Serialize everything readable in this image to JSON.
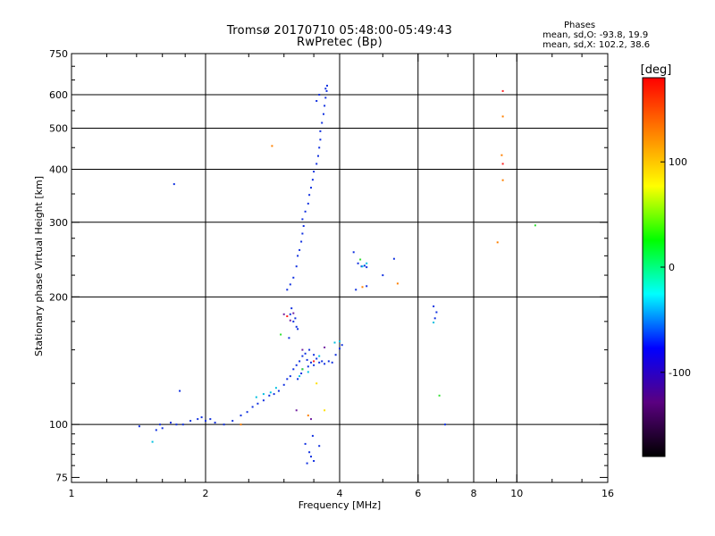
{
  "header": {
    "title_line1": "Tromsø 20170710 05:48:00-05:49:43",
    "title_line2": "RwPretec (Bp)"
  },
  "phases_box": {
    "heading": "Phases",
    "line_o": "mean, sd,O: -93.8, 19.9",
    "line_x": "mean, sd,X: 102.2, 38.6"
  },
  "chart_data": {
    "type": "scatter",
    "xlabel": "Frequency [MHz]",
    "ylabel": "Stationary phase Virtual Height [km]",
    "x_scale": "log",
    "y_scale": "log",
    "xlim": [
      1,
      16
    ],
    "ylim": [
      73,
      750
    ],
    "x_ticks": [
      1,
      2,
      4,
      6,
      8,
      10,
      16
    ],
    "x_tick_labels": [
      "1",
      "2",
      "4",
      "6",
      "8",
      "10",
      "16"
    ],
    "x_gridlines": [
      2,
      4,
      6,
      8,
      10
    ],
    "y_ticks": [
      75,
      100,
      200,
      300,
      400,
      500,
      600,
      750
    ],
    "y_tick_labels": [
      "75",
      "100",
      "200",
      "300",
      "400",
      "500",
      "600",
      "750"
    ],
    "y_gridlines": [
      100,
      200,
      300,
      400,
      500,
      600
    ],
    "grid": true,
    "colorbar": {
      "label": "[deg]",
      "ticks": [
        100,
        0,
        -100
      ],
      "tick_labels": [
        "100",
        "0",
        "-100"
      ],
      "range": [
        -180,
        180
      ],
      "colors": [
        "#000000",
        "#5a0080",
        "#0000ff",
        "#00ffff",
        "#00ff00",
        "#ffff00",
        "#ff8000",
        "#ff0000"
      ]
    },
    "series": [
      {
        "color": "#1030e0",
        "points": [
          [
            1.42,
            99
          ],
          [
            1.55,
            97
          ],
          [
            1.58,
            100
          ],
          [
            1.6,
            98
          ],
          [
            1.67,
            101
          ],
          [
            1.72,
            100
          ],
          [
            1.78,
            100
          ],
          [
            1.85,
            102
          ],
          [
            1.92,
            103
          ],
          [
            1.96,
            104
          ],
          [
            2.0,
            102
          ],
          [
            2.05,
            103
          ],
          [
            2.1,
            101
          ],
          [
            2.2,
            100
          ],
          [
            2.3,
            102
          ],
          [
            2.4,
            105
          ],
          [
            2.48,
            107
          ],
          [
            2.55,
            110
          ],
          [
            2.62,
            112
          ],
          [
            2.7,
            114
          ],
          [
            2.78,
            117
          ],
          [
            2.85,
            118
          ],
          [
            2.92,
            120
          ],
          [
            3.0,
            124
          ],
          [
            3.05,
            128
          ],
          [
            3.1,
            130
          ],
          [
            3.15,
            135
          ],
          [
            3.2,
            138
          ],
          [
            3.25,
            141
          ],
          [
            3.3,
            145
          ],
          [
            3.35,
            147
          ],
          [
            3.42,
            150
          ],
          [
            3.5,
            146
          ],
          [
            3.55,
            143
          ],
          [
            3.6,
            140
          ],
          [
            3.65,
            141
          ],
          [
            3.7,
            139
          ],
          [
            3.78,
            141
          ],
          [
            3.85,
            140
          ],
          [
            3.92,
            146
          ],
          [
            4.0,
            151
          ],
          [
            4.05,
            154
          ],
          [
            3.3,
            135
          ],
          [
            3.4,
            137
          ],
          [
            3.5,
            138
          ],
          [
            3.45,
            140
          ],
          [
            3.38,
            142
          ],
          [
            3.28,
            132
          ],
          [
            3.22,
            128
          ],
          [
            3.35,
            90
          ],
          [
            3.42,
            86
          ],
          [
            3.45,
            84
          ],
          [
            3.5,
            82
          ],
          [
            3.38,
            81
          ],
          [
            3.48,
            94
          ],
          [
            3.6,
            89
          ],
          [
            3.15,
            175
          ],
          [
            3.18,
            178
          ],
          [
            3.1,
            182
          ],
          [
            3.12,
            188
          ],
          [
            3.2,
            170
          ],
          [
            3.08,
            160
          ],
          [
            3.22,
            168
          ],
          [
            3.05,
            208
          ],
          [
            3.1,
            214
          ],
          [
            3.15,
            222
          ],
          [
            3.2,
            236
          ],
          [
            3.22,
            250
          ],
          [
            3.25,
            258
          ],
          [
            3.28,
            270
          ],
          [
            3.3,
            282
          ],
          [
            3.32,
            294
          ],
          [
            3.3,
            305
          ],
          [
            3.35,
            318
          ],
          [
            3.4,
            332
          ],
          [
            3.42,
            348
          ],
          [
            3.45,
            362
          ],
          [
            3.48,
            378
          ],
          [
            3.5,
            395
          ],
          [
            3.55,
            412
          ],
          [
            3.58,
            430
          ],
          [
            3.6,
            450
          ],
          [
            3.62,
            470
          ],
          [
            3.62,
            492
          ],
          [
            3.65,
            515
          ],
          [
            3.68,
            540
          ],
          [
            3.7,
            565
          ],
          [
            3.72,
            590
          ],
          [
            3.74,
            612
          ],
          [
            3.75,
            630
          ],
          [
            3.72,
            620
          ],
          [
            3.6,
            600
          ],
          [
            3.55,
            580
          ],
          [
            4.3,
            255
          ],
          [
            4.4,
            240
          ],
          [
            4.48,
            236
          ],
          [
            4.55,
            237
          ],
          [
            4.6,
            235
          ],
          [
            5.0,
            225
          ],
          [
            5.3,
            246
          ],
          [
            4.35,
            208
          ],
          [
            4.6,
            212
          ],
          [
            6.5,
            190
          ],
          [
            6.6,
            184
          ],
          [
            6.55,
            178
          ],
          [
            6.9,
            100
          ],
          [
            1.7,
            369
          ],
          [
            1.75,
            120
          ]
        ]
      },
      {
        "color": "#00c0e0",
        "points": [
          [
            2.6,
            116
          ],
          [
            2.7,
            118
          ],
          [
            2.8,
            119
          ],
          [
            2.88,
            122
          ],
          [
            3.25,
            130
          ],
          [
            3.4,
            133
          ],
          [
            3.9,
            156
          ],
          [
            4.0,
            157
          ],
          [
            4.5,
            236
          ],
          [
            4.6,
            240
          ],
          [
            1.52,
            91
          ],
          [
            3.6,
            145
          ],
          [
            6.5,
            174
          ]
        ]
      },
      {
        "color": "#7020a0",
        "points": [
          [
            3.1,
            176
          ],
          [
            3.15,
            183
          ],
          [
            3.3,
            150
          ],
          [
            3.7,
            152
          ],
          [
            3.2,
            108
          ],
          [
            3.45,
            103
          ],
          [
            3.0,
            182
          ]
        ]
      },
      {
        "color": "#ff2020",
        "points": [
          [
            3.05,
            180
          ],
          [
            3.5,
            141
          ],
          [
            9.3,
            412
          ],
          [
            9.3,
            612
          ]
        ]
      },
      {
        "color": "#ff8000",
        "points": [
          [
            2.4,
            100
          ],
          [
            2.82,
            454
          ],
          [
            3.4,
            105
          ],
          [
            4.5,
            211
          ],
          [
            9.3,
            533
          ],
          [
            9.3,
            377
          ],
          [
            9.25,
            432
          ],
          [
            9.05,
            269
          ],
          [
            5.4,
            215
          ]
        ]
      },
      {
        "color": "#30e030",
        "points": [
          [
            2.95,
            163
          ],
          [
            3.3,
            135
          ],
          [
            4.45,
            245
          ],
          [
            6.7,
            117
          ],
          [
            11.0,
            295
          ]
        ]
      },
      {
        "color": "#ffe000",
        "points": [
          [
            3.55,
            125
          ],
          [
            3.7,
            108
          ]
        ]
      }
    ]
  }
}
